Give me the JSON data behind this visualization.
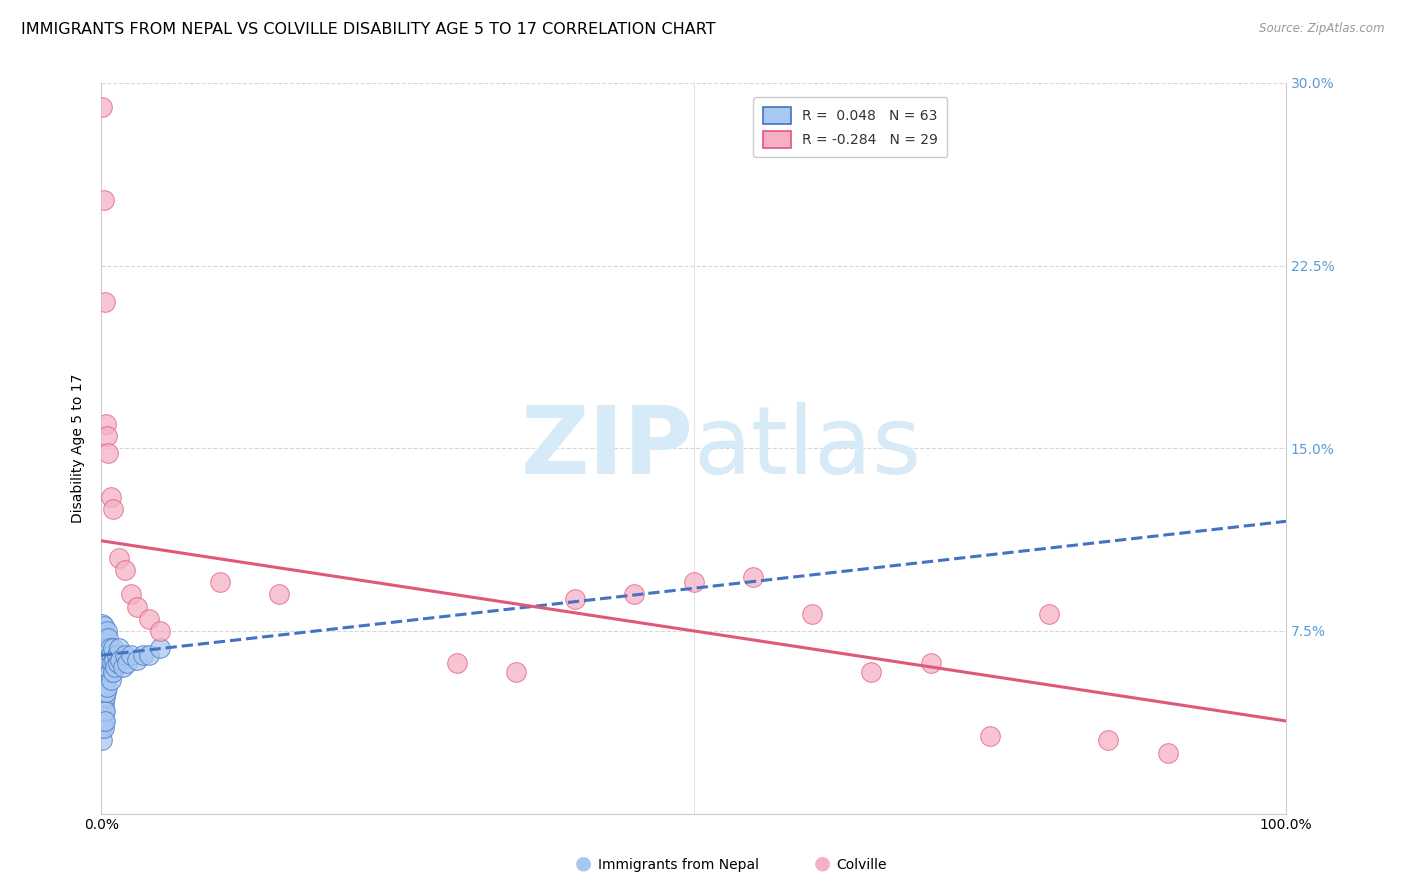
{
  "title": "IMMIGRANTS FROM NEPAL VS COLVILLE DISABILITY AGE 5 TO 17 CORRELATION CHART",
  "source": "Source: ZipAtlas.com",
  "ylabel": "Disability Age 5 to 17",
  "xlim": [
    0,
    1.0
  ],
  "ylim": [
    0,
    0.3
  ],
  "xticks": [
    0.0,
    0.25,
    0.5,
    0.75,
    1.0
  ],
  "xticklabels": [
    "0.0%",
    "",
    "",
    "",
    "100.0%"
  ],
  "yticks": [
    0.0,
    0.075,
    0.15,
    0.225,
    0.3
  ],
  "yticklabels": [
    "",
    "7.5%",
    "15.0%",
    "22.5%",
    "30.0%"
  ],
  "blue_fill": "#a8c8f0",
  "blue_edge": "#4472c4",
  "pink_fill": "#f5b0c5",
  "pink_edge": "#e05878",
  "blue_line_color": "#4472c4",
  "pink_line_color": "#e05878",
  "right_tick_color": "#5b9bd5",
  "grid_color": "#d8d8d8",
  "watermark_color": "#d6eaf8",
  "title_fontsize": 11.5,
  "nepal_x": [
    0.001,
    0.001,
    0.001,
    0.001,
    0.001,
    0.001,
    0.001,
    0.001,
    0.001,
    0.001,
    0.001,
    0.001,
    0.001,
    0.001,
    0.002,
    0.002,
    0.002,
    0.002,
    0.002,
    0.002,
    0.002,
    0.002,
    0.002,
    0.002,
    0.002,
    0.003,
    0.003,
    0.003,
    0.003,
    0.003,
    0.003,
    0.003,
    0.004,
    0.004,
    0.004,
    0.004,
    0.005,
    0.005,
    0.005,
    0.005,
    0.006,
    0.006,
    0.007,
    0.007,
    0.008,
    0.008,
    0.009,
    0.01,
    0.01,
    0.011,
    0.012,
    0.013,
    0.014,
    0.015,
    0.016,
    0.018,
    0.02,
    0.022,
    0.025,
    0.03,
    0.035,
    0.04,
    0.05
  ],
  "nepal_y": [
    0.065,
    0.068,
    0.072,
    0.075,
    0.078,
    0.055,
    0.058,
    0.062,
    0.045,
    0.048,
    0.052,
    0.04,
    0.035,
    0.03,
    0.07,
    0.073,
    0.077,
    0.06,
    0.063,
    0.045,
    0.048,
    0.052,
    0.038,
    0.042,
    0.035,
    0.068,
    0.072,
    0.062,
    0.055,
    0.048,
    0.042,
    0.038,
    0.07,
    0.065,
    0.058,
    0.05,
    0.075,
    0.068,
    0.06,
    0.052,
    0.072,
    0.063,
    0.068,
    0.058,
    0.065,
    0.055,
    0.062,
    0.068,
    0.058,
    0.063,
    0.06,
    0.065,
    0.062,
    0.068,
    0.063,
    0.06,
    0.065,
    0.062,
    0.065,
    0.063,
    0.065,
    0.065,
    0.068
  ],
  "colville_x": [
    0.001,
    0.002,
    0.003,
    0.004,
    0.005,
    0.006,
    0.008,
    0.01,
    0.015,
    0.02,
    0.025,
    0.03,
    0.04,
    0.05,
    0.1,
    0.15,
    0.3,
    0.35,
    0.4,
    0.45,
    0.5,
    0.55,
    0.6,
    0.65,
    0.7,
    0.75,
    0.8,
    0.85,
    0.9
  ],
  "colville_y": [
    0.29,
    0.252,
    0.21,
    0.16,
    0.155,
    0.148,
    0.13,
    0.125,
    0.105,
    0.1,
    0.09,
    0.085,
    0.08,
    0.075,
    0.095,
    0.09,
    0.062,
    0.058,
    0.088,
    0.09,
    0.095,
    0.097,
    0.082,
    0.058,
    0.062,
    0.032,
    0.082,
    0.03,
    0.025
  ],
  "nepal_trend": [
    0.065,
    0.12
  ],
  "colville_trend": [
    0.112,
    0.038
  ],
  "trend_x": [
    0.0,
    1.0
  ]
}
